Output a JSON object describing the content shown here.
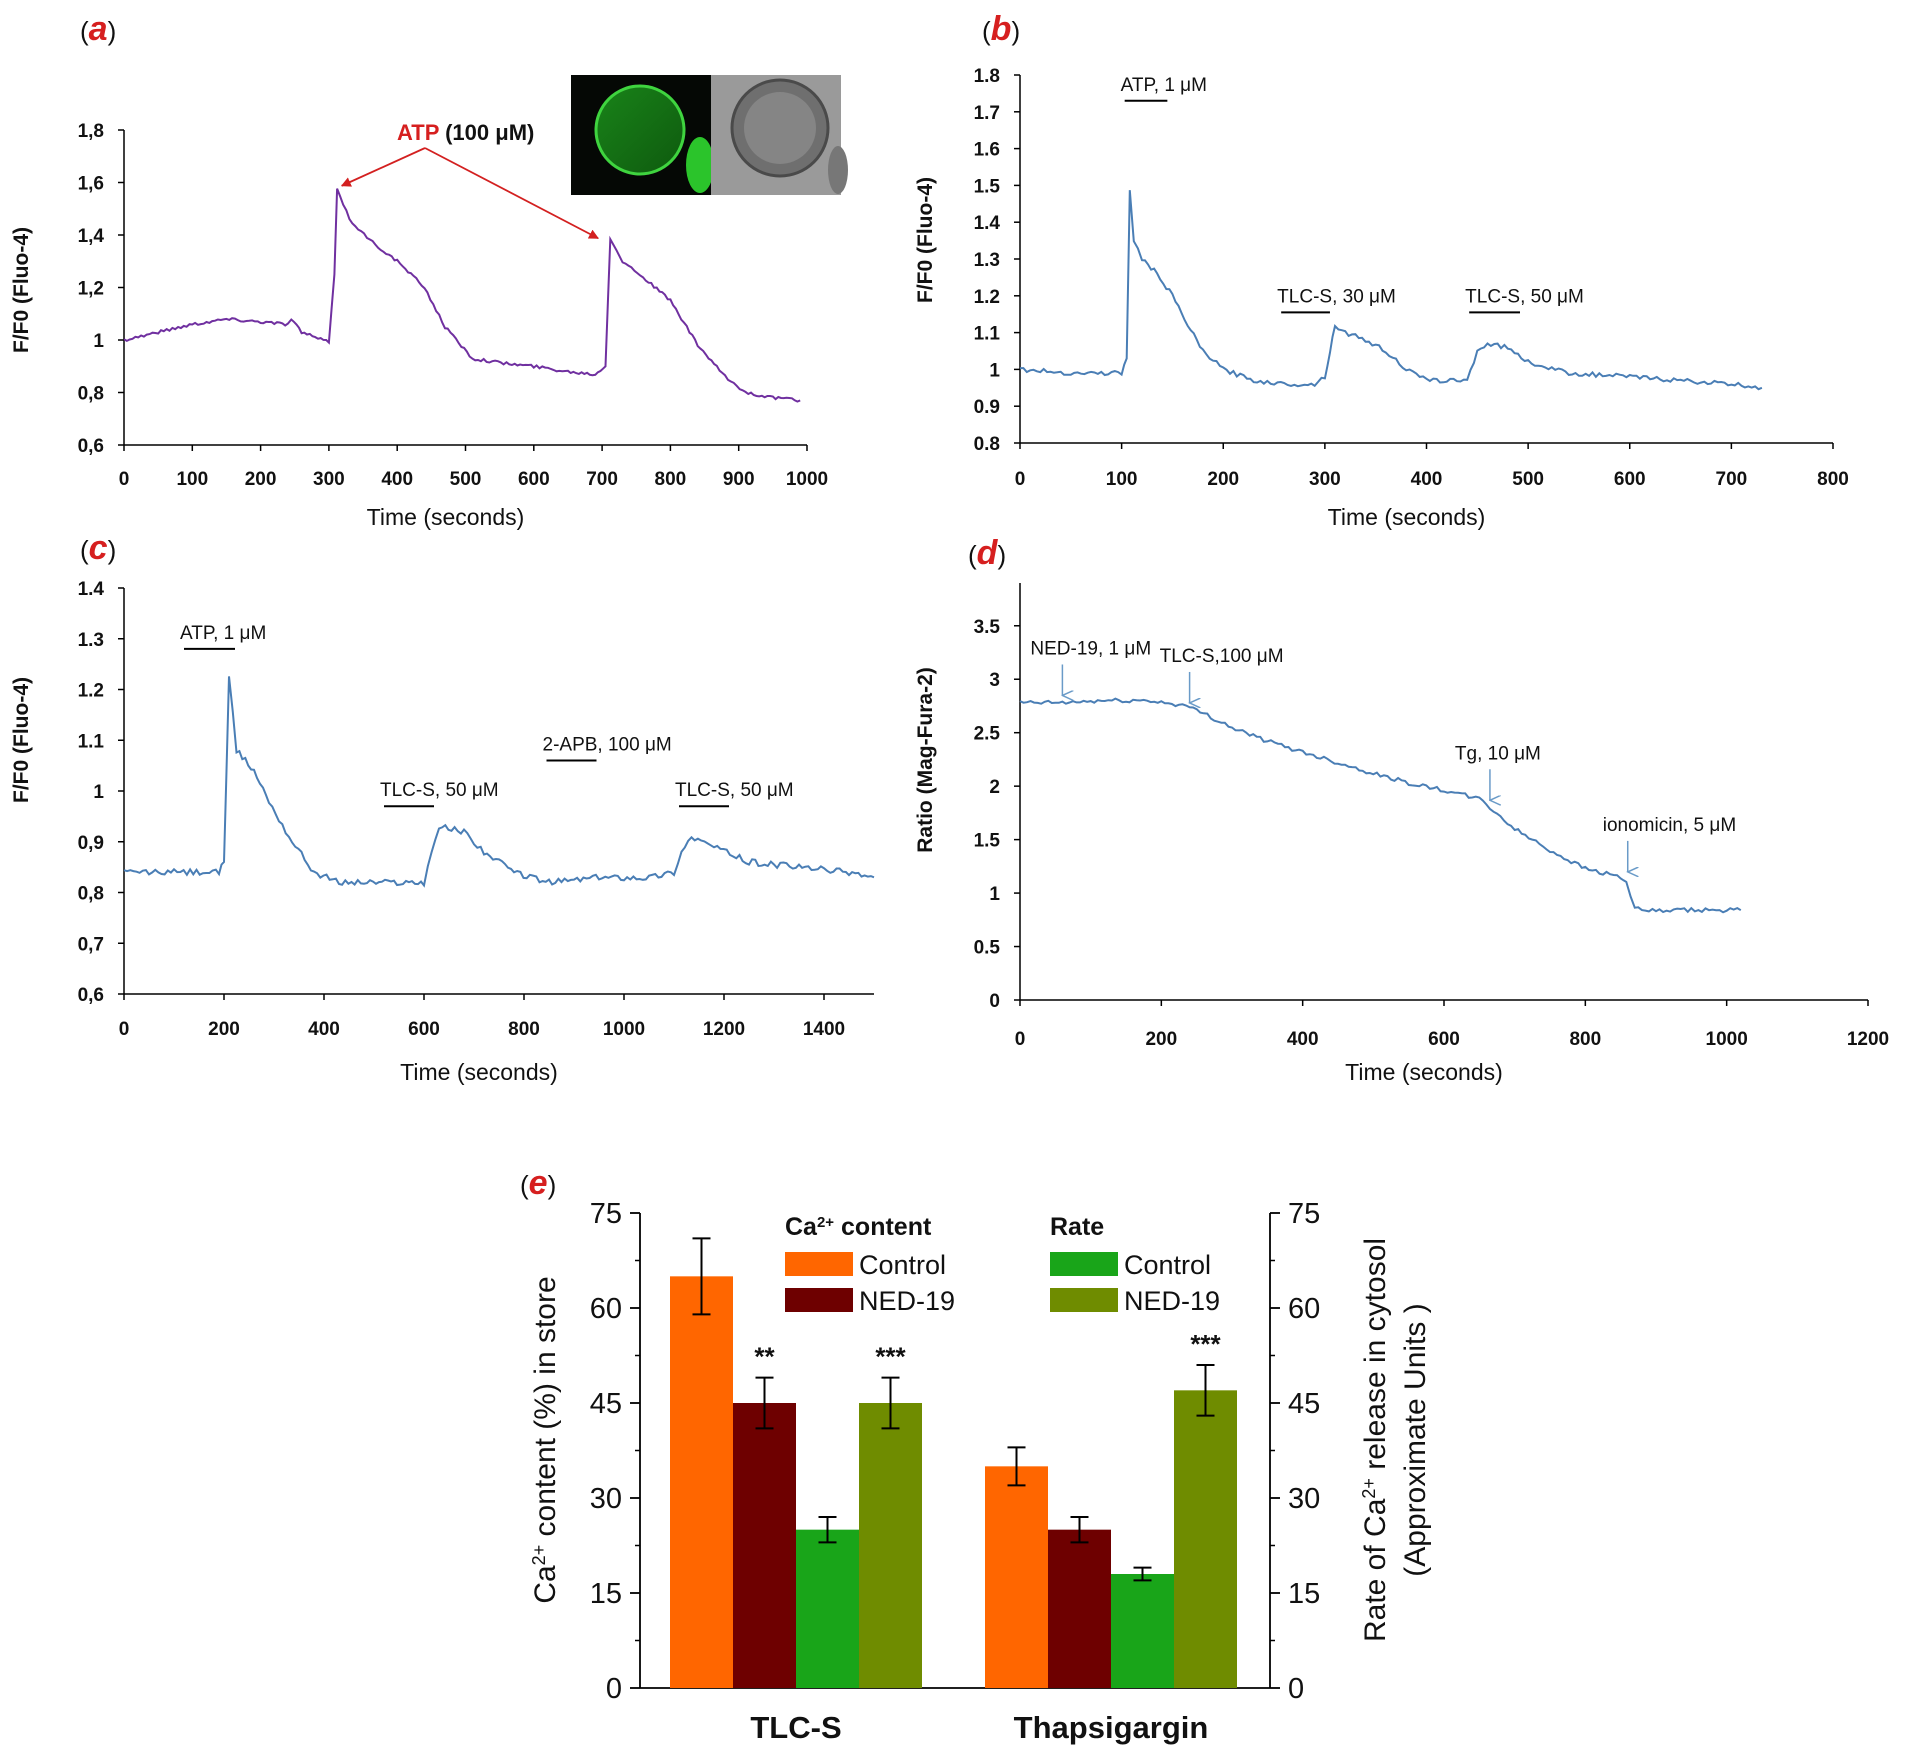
{
  "colors": {
    "purple_trace": "#7030a0",
    "blue_trace": "#4a7eb5",
    "arrow_red": "#d32020",
    "label_red": "#d61f1f",
    "orange": "#ff6600",
    "dark_red": "#6e0000",
    "green": "#19a519",
    "olive": "#6f8c00",
    "axis": "#000000"
  },
  "chart_data": [
    {
      "id": "a",
      "panel_label": "a",
      "type": "line",
      "xlabel": "Time (seconds)",
      "ylabel": "F/F0 (Fluo-4)",
      "xlim": [
        0,
        1000
      ],
      "ylim": [
        0.6,
        1.8
      ],
      "x_ticks": [
        0,
        100,
        200,
        300,
        400,
        500,
        600,
        700,
        800,
        900,
        1000
      ],
      "x_tick_labels": [
        "0",
        "100",
        "200",
        "300",
        "400",
        "500",
        "600",
        "700",
        "800",
        "900",
        "1000"
      ],
      "y_ticks": [
        0.6,
        0.8,
        1.0,
        1.2,
        1.4,
        1.6,
        1.8
      ],
      "y_tick_labels": [
        "0,6",
        "0,8",
        "1",
        "1,2",
        "1,4",
        "1,6",
        "1,8"
      ],
      "annotation": {
        "text_red": "ATP",
        "text_black": " (100 μM)",
        "arrow_targets": [
          [
            313,
            1.58
          ],
          [
            700,
            1.38
          ]
        ]
      },
      "inset_image": "fluorescence-and-brightfield-cell",
      "series": [
        {
          "name": "F/F0",
          "color": "#7030a0",
          "x": [
            0,
            50,
            100,
            150,
            200,
            240,
            245,
            260,
            300,
            308,
            312,
            330,
            360,
            400,
            440,
            470,
            510,
            560,
            600,
            650,
            690,
            705,
            712,
            730,
            760,
            800,
            840,
            880,
            910,
            950,
            990
          ],
          "y": [
            1.0,
            1.03,
            1.06,
            1.08,
            1.07,
            1.06,
            1.08,
            1.03,
            0.99,
            1.25,
            1.58,
            1.46,
            1.38,
            1.3,
            1.2,
            1.05,
            0.93,
            0.91,
            0.9,
            0.88,
            0.87,
            0.9,
            1.39,
            1.3,
            1.24,
            1.15,
            0.98,
            0.86,
            0.8,
            0.78,
            0.77
          ]
        }
      ]
    },
    {
      "id": "b",
      "panel_label": "b",
      "type": "line",
      "xlabel": "Time (seconds)",
      "ylabel": "F/F0 (Fluo-4)",
      "xlim": [
        0,
        800
      ],
      "ylim": [
        0.8,
        1.8
      ],
      "x_ticks": [
        0,
        100,
        200,
        300,
        400,
        500,
        600,
        700,
        800
      ],
      "x_tick_labels": [
        "0",
        "100",
        "200",
        "300",
        "400",
        "500",
        "600",
        "700",
        "800"
      ],
      "y_ticks": [
        0.8,
        0.9,
        1.0,
        1.1,
        1.2,
        1.3,
        1.4,
        1.5,
        1.6,
        1.7,
        1.8
      ],
      "y_tick_labels": [
        "0.8",
        "0.9",
        "1",
        "1.1",
        "1.2",
        "1.3",
        "1.4",
        "1.5",
        "1.6",
        "1.7",
        "1.8"
      ],
      "bars": [
        {
          "text": "ATP, 1 μM",
          "x0": 103,
          "x1": 145,
          "y": 1.73
        },
        {
          "text": "TLC-S, 30 μM",
          "x0": 257,
          "x1": 305,
          "y": 1.155
        },
        {
          "text": "TLC-S, 50 μM",
          "x0": 442,
          "x1": 492,
          "y": 1.155
        }
      ],
      "series": [
        {
          "name": "F/F0",
          "color": "#4a7eb5",
          "x": [
            0,
            50,
            100,
            105,
            108,
            112,
            120,
            135,
            150,
            165,
            180,
            200,
            230,
            260,
            290,
            300,
            305,
            310,
            320,
            340,
            360,
            380,
            400,
            420,
            440,
            450,
            460,
            480,
            500,
            540,
            600,
            650,
            700,
            730
          ],
          "y": [
            1.0,
            0.99,
            0.99,
            1.03,
            1.49,
            1.35,
            1.3,
            1.26,
            1.2,
            1.12,
            1.05,
            1.0,
            0.97,
            0.96,
            0.96,
            0.98,
            1.05,
            1.12,
            1.1,
            1.08,
            1.05,
            1.0,
            0.97,
            0.97,
            0.97,
            1.05,
            1.07,
            1.06,
            1.02,
            0.99,
            0.98,
            0.97,
            0.96,
            0.95
          ]
        }
      ]
    },
    {
      "id": "c",
      "panel_label": "c",
      "type": "line",
      "xlabel": "Time (seconds)",
      "ylabel": "F/F0 (Fluo-4)",
      "xlim": [
        0,
        1500
      ],
      "ylim": [
        0.6,
        1.4
      ],
      "x_ticks": [
        0,
        200,
        400,
        600,
        800,
        1000,
        1200,
        1400
      ],
      "x_tick_labels": [
        "0",
        "200",
        "400",
        "600",
        "800",
        "1000",
        "1200",
        "1400"
      ],
      "y_ticks": [
        0.6,
        0.7,
        0.8,
        0.9,
        1.0,
        1.1,
        1.2,
        1.3,
        1.4
      ],
      "y_tick_labels": [
        "0,6",
        "0,7",
        "0,8",
        "0,9",
        "1",
        "1.1",
        "1.2",
        "1.3",
        "1.4"
      ],
      "bars": [
        {
          "text": "ATP, 1 μM",
          "x0": 120,
          "x1": 222,
          "y": 1.28
        },
        {
          "text": "TLC-S, 50 μM",
          "x0": 520,
          "x1": 620,
          "y": 0.97
        },
        {
          "text": "2-APB, 100 μM",
          "x0": 845,
          "x1": 945,
          "y": 1.06
        },
        {
          "text": "TLC-S, 50 μM",
          "x0": 1110,
          "x1": 1210,
          "y": 0.97
        }
      ],
      "series": [
        {
          "name": "F/F0",
          "color": "#4a7eb5",
          "x": [
            0,
            100,
            190,
            200,
            210,
            225,
            260,
            290,
            330,
            380,
            430,
            480,
            540,
            600,
            615,
            630,
            680,
            720,
            780,
            850,
            950,
            1050,
            1100,
            1115,
            1135,
            1180,
            1250,
            1350,
            1450,
            1500
          ],
          "y": [
            0.84,
            0.84,
            0.84,
            0.86,
            1.22,
            1.08,
            1.04,
            0.98,
            0.91,
            0.84,
            0.82,
            0.82,
            0.82,
            0.82,
            0.88,
            0.93,
            0.92,
            0.88,
            0.84,
            0.82,
            0.83,
            0.83,
            0.84,
            0.88,
            0.91,
            0.89,
            0.86,
            0.85,
            0.84,
            0.83
          ]
        }
      ]
    },
    {
      "id": "d",
      "panel_label": "d",
      "type": "line",
      "xlabel": "Time (seconds)",
      "ylabel": "Ratio (Mag-Fura-2)",
      "xlim": [
        0,
        1200
      ],
      "ylim": [
        0,
        3.9
      ],
      "x_ticks": [
        0,
        200,
        400,
        600,
        800,
        1000,
        1200
      ],
      "x_tick_labels": [
        "0",
        "200",
        "400",
        "600",
        "800",
        "1000",
        "1200"
      ],
      "y_ticks": [
        0,
        0.5,
        1.0,
        1.5,
        2.0,
        2.5,
        3.0,
        3.5
      ],
      "y_tick_labels": [
        "0",
        "0.5",
        "1",
        "1.5",
        "2",
        "2.5",
        "3",
        "3.5"
      ],
      "arrows": [
        {
          "text": "NED-19, 1 μM",
          "x": 60,
          "y": 2.82
        },
        {
          "text": "TLC-S,100 μM",
          "x": 240,
          "y": 2.75
        },
        {
          "text": "Tg, 10 μM",
          "x": 665,
          "y": 1.84
        },
        {
          "text": "ionomicin, 5 μM",
          "x": 860,
          "y": 1.17
        }
      ],
      "series": [
        {
          "name": "Ratio",
          "color": "#4a7eb5",
          "x": [
            0,
            60,
            120,
            180,
            230,
            260,
            300,
            350,
            400,
            450,
            500,
            550,
            600,
            650,
            665,
            700,
            750,
            800,
            850,
            858,
            870,
            900,
            950,
            1000,
            1020
          ],
          "y": [
            2.78,
            2.78,
            2.8,
            2.8,
            2.76,
            2.68,
            2.55,
            2.42,
            2.32,
            2.22,
            2.12,
            2.03,
            1.96,
            1.88,
            1.8,
            1.6,
            1.4,
            1.23,
            1.15,
            1.1,
            0.85,
            0.83,
            0.84,
            0.84,
            0.84
          ]
        }
      ]
    },
    {
      "id": "e",
      "panel_label": "e",
      "type": "bar",
      "categories": [
        "TLC-S",
        "Thapsigargin"
      ],
      "ylabel_left": "Ca2+ content (%) in store",
      "ylabel_right_line1": "Rate of Ca2+ release in cytosol",
      "ylabel_right_line2": "(Approximate Units )",
      "ylim": [
        0,
        75
      ],
      "y_ticks": [
        0,
        15,
        30,
        45,
        60,
        75
      ],
      "y_tick_labels": [
        "0",
        "15",
        "30",
        "45",
        "60",
        "75"
      ],
      "legend_groups": [
        {
          "title": "Ca2+ content",
          "items": [
            "Control",
            "NED-19"
          ]
        },
        {
          "title": "Rate",
          "items": [
            "Control",
            "NED-19"
          ]
        }
      ],
      "series": [
        {
          "name": "Ca2+ content Control",
          "color": "#ff6600",
          "values": [
            65,
            35
          ],
          "errors": [
            6,
            3
          ],
          "stars": [
            "",
            ""
          ]
        },
        {
          "name": "Ca2+ content NED-19",
          "color": "#6e0000",
          "values": [
            45,
            25
          ],
          "errors": [
            4,
            2
          ],
          "stars": [
            "**",
            ""
          ]
        },
        {
          "name": "Rate Control",
          "color": "#19a519",
          "values": [
            25,
            18
          ],
          "errors": [
            2,
            1
          ],
          "stars": [
            "",
            ""
          ]
        },
        {
          "name": "Rate NED-19",
          "color": "#6f8c00",
          "values": [
            45,
            47
          ],
          "errors": [
            4,
            4
          ],
          "stars": [
            "***",
            "***"
          ]
        }
      ]
    }
  ]
}
